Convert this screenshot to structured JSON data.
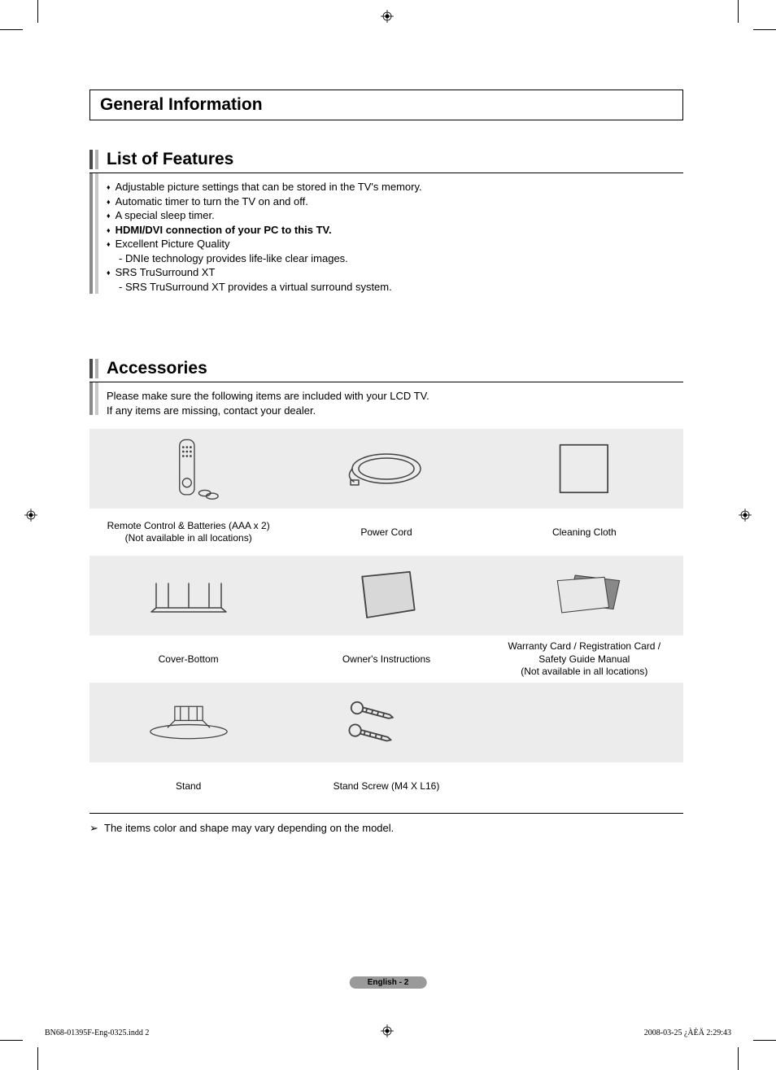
{
  "section_title": "General Information",
  "features": {
    "title": "List of Features",
    "items": [
      {
        "text": "Adjustable picture settings that can be stored in the TV's memory.",
        "bold": false
      },
      {
        "text": "Automatic timer to turn the TV on and off.",
        "bold": false
      },
      {
        "text": "A special sleep timer.",
        "bold": false
      },
      {
        "text": "HDMI/DVI connection of your PC to this TV.",
        "bold": true
      },
      {
        "text": "Excellent Picture Quality",
        "bold": false
      },
      {
        "text": "- DNIe technology provides life-like clear images.",
        "sub": true
      },
      {
        "text": "SRS TruSurround XT",
        "bold": false
      },
      {
        "text": "- SRS TruSurround XT provides a virtual surround system.",
        "sub": true
      }
    ]
  },
  "accessories": {
    "title": "Accessories",
    "intro1": "Please make sure the following items are included with your LCD TV.",
    "intro2": "If any items are missing, contact your dealer.",
    "rows": [
      [
        {
          "label": "Remote Control & Batteries (AAA x 2)\n(Not available in all locations)",
          "icon": "remote"
        },
        {
          "label": "Power Cord",
          "icon": "cord"
        },
        {
          "label": "Cleaning Cloth",
          "icon": "cloth"
        }
      ],
      [
        {
          "label": "Cover-Bottom",
          "icon": "cover"
        },
        {
          "label": "Owner's Instructions",
          "icon": "manual"
        },
        {
          "label": "Warranty Card / Registration Card /\nSafety Guide Manual\n(Not available in all locations)",
          "icon": "cards"
        }
      ],
      [
        {
          "label": "Stand",
          "icon": "stand"
        },
        {
          "label": "Stand Screw (M4 X L16)",
          "icon": "screws"
        },
        {
          "label": "",
          "icon": ""
        }
      ]
    ],
    "footnote": "The items color and shape may vary depending on the model."
  },
  "page_pill": "English - 2",
  "footer_left": "BN68-01395F-Eng-0325.indd   2",
  "footer_right": "2008-03-25   ¿ÀÈÄ 2:29:43",
  "colors": {
    "gray_bg": "#ececec",
    "pill_bg": "#9a9a9a"
  }
}
